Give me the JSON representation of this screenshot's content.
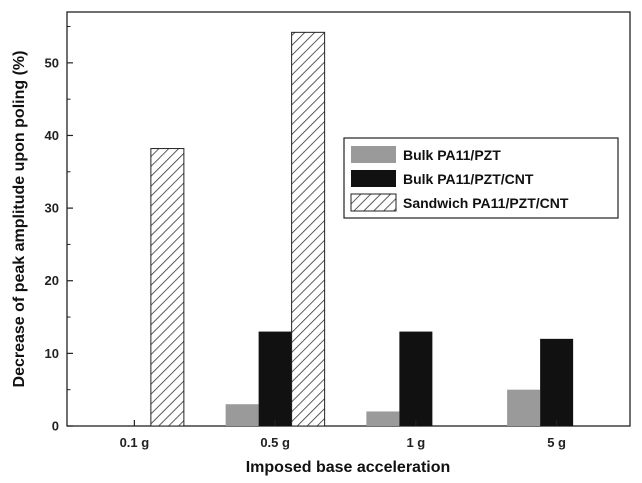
{
  "chart_data": {
    "type": "bar",
    "title": "",
    "xlabel": "Imposed base acceleration",
    "ylabel": "Decrease of peak amplitude upon poling (%)",
    "categories": [
      "0.1 g",
      "0.5 g",
      "1 g",
      "5 g"
    ],
    "ylim": [
      0,
      57
    ],
    "yticks": [
      0,
      10,
      20,
      30,
      40,
      50
    ],
    "grid": false,
    "legend_position": "right",
    "series": [
      {
        "name": "Bulk PA11/PZT",
        "values": [
          null,
          3,
          2,
          5
        ],
        "color": "#9a9a9a",
        "pattern": "solid"
      },
      {
        "name": "Bulk PA11/PZT/CNT",
        "values": [
          null,
          13,
          13,
          12
        ],
        "color": "#111111",
        "pattern": "solid"
      },
      {
        "name": "Sandwich PA11/PZT/CNT",
        "values": [
          38.2,
          54.2,
          null,
          null
        ],
        "color": "#ffffff",
        "pattern": "hatch"
      }
    ]
  }
}
